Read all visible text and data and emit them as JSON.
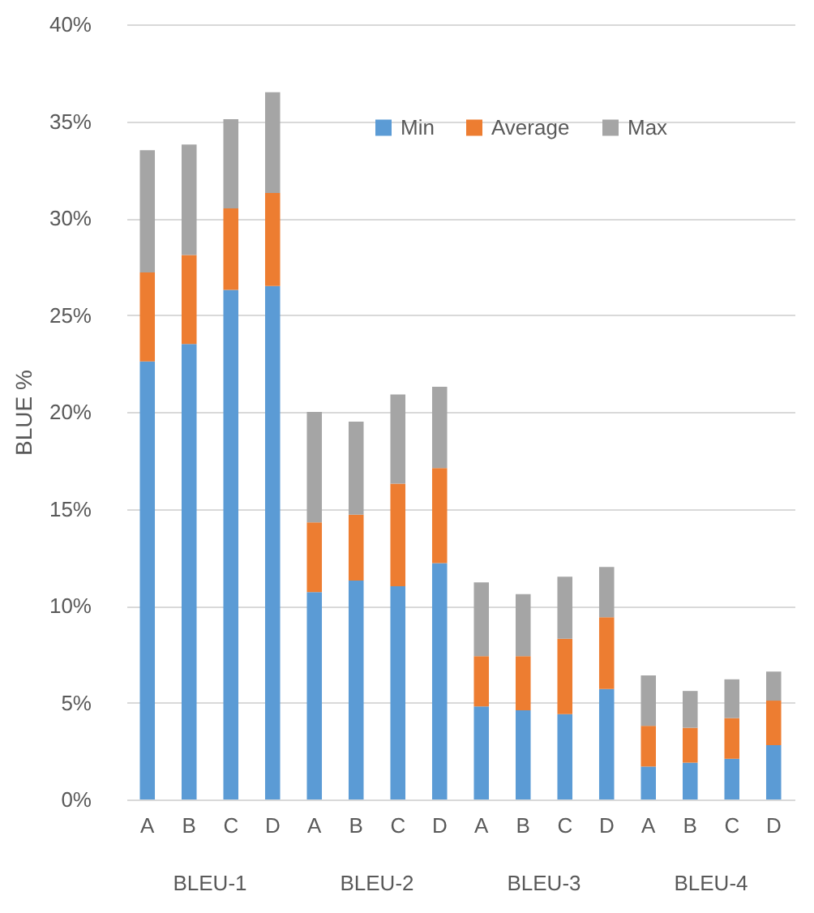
{
  "chart_data": {
    "type": "bar",
    "stacked": true,
    "ylabel": "BLUE %",
    "categories": [
      "A",
      "B",
      "C",
      "D",
      "A",
      "B",
      "C",
      "D",
      "A",
      "B",
      "C",
      "D",
      "A",
      "B",
      "C",
      "D"
    ],
    "annotations": [
      "BLEU-1",
      "BLEU-2",
      "BLEU-3",
      "BLEU-4"
    ],
    "series": [
      {
        "name": "Min",
        "color": "#5b9bd5",
        "values": [
          22.6,
          23.5,
          26.3,
          26.5,
          10.7,
          11.3,
          11.0,
          12.2,
          4.8,
          4.6,
          4.4,
          5.7,
          1.7,
          1.9,
          2.1,
          2.8
        ]
      },
      {
        "name": "Average",
        "color": "#ed7d31",
        "values": [
          4.6,
          4.6,
          4.2,
          4.8,
          3.6,
          3.4,
          5.3,
          4.9,
          2.6,
          2.8,
          3.9,
          3.7,
          2.1,
          1.8,
          2.1,
          2.3
        ]
      },
      {
        "name": "Max",
        "color": "#a5a5a5",
        "values": [
          6.3,
          5.7,
          4.6,
          5.2,
          5.7,
          4.8,
          4.6,
          4.2,
          3.8,
          3.2,
          3.2,
          2.6,
          2.6,
          1.9,
          2.0,
          1.5
        ]
      }
    ],
    "ylim": [
      0,
      40
    ],
    "yticks": [
      {
        "value": 0,
        "label": "0%"
      },
      {
        "value": 5,
        "label": "5%"
      },
      {
        "value": 10,
        "label": "10%"
      },
      {
        "value": 15,
        "label": "15%"
      },
      {
        "value": 20,
        "label": "20%"
      },
      {
        "value": 25,
        "label": "25%"
      },
      {
        "value": 30,
        "label": "30%"
      },
      {
        "value": 35,
        "label": "35%"
      },
      {
        "value": 40,
        "label": "40%"
      }
    ],
    "grid": "y",
    "legend": "top right"
  }
}
